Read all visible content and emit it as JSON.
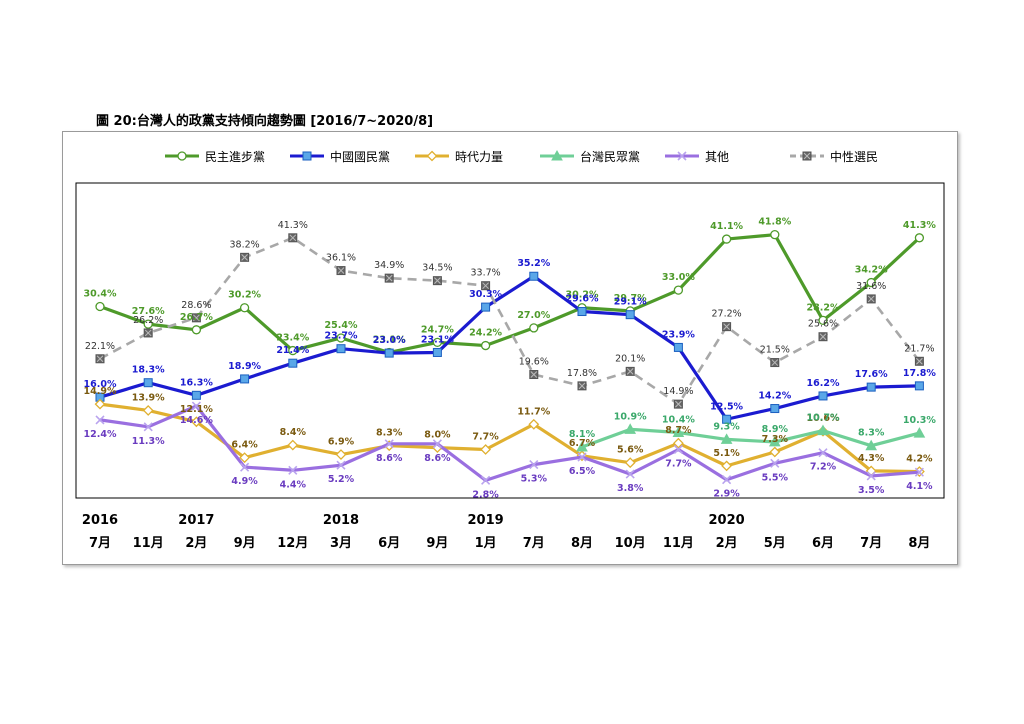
{
  "title": "圖 20:台灣人的政黨支持傾向趨勢圖  [2016/7~2020/8]",
  "chart_data": {
    "type": "line",
    "title": "圖 20:台灣人的政黨支持傾向趨勢圖  [2016/7~2020/8]",
    "xlabel": "",
    "ylabel": "",
    "ylim": [
      0,
      50
    ],
    "grid": false,
    "legend_position": "top",
    "years": [
      {
        "label": "2016",
        "index": 0
      },
      {
        "label": "2017",
        "index": 2
      },
      {
        "label": "2018",
        "index": 5
      },
      {
        "label": "2019",
        "index": 8
      },
      {
        "label": "2020",
        "index": 13
      }
    ],
    "categories": [
      "7月",
      "11月",
      "2月",
      "9月",
      "12月",
      "3月",
      "6月",
      "9月",
      "1月",
      "7月",
      "8月",
      "10月",
      "11月",
      "2月",
      "5月",
      "6月",
      "7月",
      "8月"
    ],
    "series": [
      {
        "name": "民主進步黨",
        "color": "#4e9a2a",
        "label_color": "#4e9a2a",
        "marker": "circle",
        "dash": false,
        "values": [
          30.4,
          27.6,
          26.7,
          30.2,
          23.4,
          25.4,
          23.1,
          24.7,
          24.2,
          27.0,
          30.2,
          29.7,
          33.0,
          41.1,
          41.8,
          28.2,
          34.2,
          41.3
        ],
        "labels": [
          "30.4%",
          "27.6%",
          "26.7%",
          "30.2%",
          "23.4%",
          "25.4%",
          "23.1%",
          "24.7%",
          "24.2%",
          "27.0%",
          "30.2%",
          "29.7%",
          "33.0%",
          "41.1%",
          "41.8%",
          "28.2%",
          "34.2%",
          "41.3%"
        ]
      },
      {
        "name": "中國國民黨",
        "color": "#1b1bd0",
        "label_color": "#1b1bd0",
        "marker": "square",
        "dash": false,
        "values": [
          16.0,
          18.3,
          16.3,
          18.9,
          21.4,
          23.7,
          23.0,
          23.1,
          30.3,
          35.2,
          29.6,
          29.1,
          23.9,
          12.5,
          14.2,
          16.2,
          17.6,
          17.8
        ],
        "labels": [
          "16.0%",
          "18.3%",
          "16.3%",
          "18.9%",
          "21.4%",
          "23.7%",
          "23.0%",
          "23.1%",
          "30.3%",
          "35.2%",
          "29.6%",
          "29.1%",
          "23.9%",
          "12.5%",
          "14.2%",
          "16.2%",
          "17.6%",
          "17.8%"
        ]
      },
      {
        "name": "時代力量",
        "color": "#e0b030",
        "label_color": "#7a5a10",
        "marker": "diamond",
        "dash": false,
        "values": [
          14.9,
          13.9,
          12.1,
          6.4,
          8.4,
          6.9,
          8.3,
          8.0,
          7.7,
          11.7,
          6.7,
          5.6,
          8.7,
          5.1,
          7.3,
          10.6,
          4.3,
          4.2
        ],
        "labels": [
          "14.9%",
          "13.9%",
          "12.1%",
          "6.4%",
          "8.4%",
          "6.9%",
          "8.3%",
          "8.0%",
          "7.7%",
          "11.7%",
          "6.7%",
          "5.6%",
          "8.7%",
          "5.1%",
          "7.3%",
          "10.6%",
          "4.3%",
          "4.2%"
        ]
      },
      {
        "name": "台灣民眾黨",
        "color": "#6fcf97",
        "label_color": "#3aa86a",
        "marker": "triangle",
        "dash": false,
        "values": [
          null,
          null,
          null,
          null,
          null,
          null,
          null,
          null,
          null,
          null,
          8.1,
          10.9,
          10.4,
          9.3,
          8.9,
          10.7,
          8.3,
          10.3
        ],
        "labels": [
          "",
          "",
          "",
          "",
          "",
          "",
          "",
          "",
          "",
          "",
          "8.1%",
          "10.9%",
          "10.4%",
          "9.3%",
          "8.9%",
          "10.7%",
          "8.3%",
          "10.3%"
        ]
      },
      {
        "name": "其他",
        "color": "#9a6fe0",
        "label_color": "#6a3cc0",
        "marker": "x",
        "dash": false,
        "values": [
          12.4,
          11.3,
          14.6,
          4.9,
          4.4,
          5.2,
          8.6,
          8.6,
          2.8,
          5.3,
          6.5,
          3.8,
          7.7,
          2.9,
          5.5,
          7.2,
          3.5,
          4.1
        ],
        "labels": [
          "12.4%",
          "11.3%",
          "14.6%",
          "4.9%",
          "4.4%",
          "5.2%",
          "8.6%",
          "8.6%",
          "2.8%",
          "5.3%",
          "6.5%",
          "3.8%",
          "7.7%",
          "2.9%",
          "5.5%",
          "7.2%",
          "3.5%",
          "4.1%"
        ]
      },
      {
        "name": "中性選民",
        "color": "#a8a8a8",
        "label_color": "#333333",
        "marker": "xsquare",
        "dash": true,
        "values": [
          22.1,
          26.2,
          28.6,
          38.2,
          41.3,
          36.1,
          34.9,
          34.5,
          33.7,
          19.6,
          17.8,
          20.1,
          14.9,
          27.2,
          21.5,
          25.6,
          31.6,
          21.7
        ],
        "labels": [
          "22.1%",
          "26.2%",
          "28.6%",
          "38.2%",
          "41.3%",
          "36.1%",
          "34.9%",
          "34.5%",
          "33.7%",
          "19.6%",
          "17.8%",
          "20.1%",
          "14.9%",
          "27.2%",
          "21.5%",
          "25.6%",
          "31.6%",
          "21.7%"
        ]
      }
    ]
  }
}
